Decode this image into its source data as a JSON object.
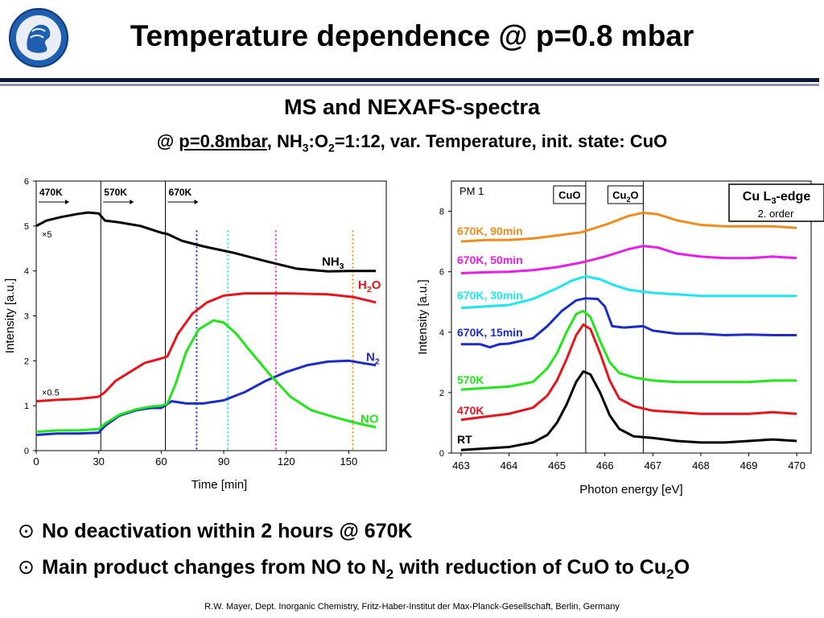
{
  "header": {
    "title": "Temperature dependence @ p=0.8 mbar",
    "subtitle": "MS and NEXAFS-spectra",
    "subline": {
      "prefix": "@ ",
      "pressure": "p=0.8mbar",
      "ratio_pre": ", NH",
      "sub1": "3",
      "ratio_mid": ":O",
      "sub2": "2",
      "ratio_post": "=1:12, var. Temperature, init. state: CuO"
    }
  },
  "colors": {
    "nh3": "#000000",
    "h2o": "#e8141c",
    "n2": "#1c2cc8",
    "no": "#22e61a",
    "cyan": "#1ee6f0",
    "magenta": "#e61ee6",
    "orange": "#f08c1e",
    "header_rule": "#0b1a3a"
  },
  "chart_data": [
    {
      "type": "line",
      "xlabel": "Time [min]",
      "ylabel": "Intensity [a.u.]",
      "xlim": [
        0,
        168
      ],
      "ylim": [
        0,
        6
      ],
      "xticks": [
        "0",
        "30",
        "60",
        "90",
        "120",
        "150"
      ],
      "yticks": [
        "0",
        "1",
        "2",
        "3",
        "4",
        "5",
        "6"
      ],
      "segments": [
        {
          "label": "470K",
          "start": 0
        },
        {
          "label": "570K",
          "start": 31
        },
        {
          "label": "670K",
          "start": 62
        }
      ],
      "scale_notes": [
        "×5",
        "×0.5"
      ],
      "marker_times": [
        77,
        92,
        115,
        152
      ],
      "series": [
        {
          "name": "NH3",
          "label_main": "NH",
          "label_sub": "3",
          "color": "#000000",
          "points": [
            [
              0,
              5.0
            ],
            [
              5,
              5.12
            ],
            [
              12,
              5.2
            ],
            [
              20,
              5.27
            ],
            [
              25,
              5.3
            ],
            [
              30,
              5.28
            ],
            [
              33,
              5.12
            ],
            [
              40,
              5.08
            ],
            [
              50,
              5.0
            ],
            [
              60,
              4.85
            ],
            [
              63,
              4.82
            ],
            [
              70,
              4.67
            ],
            [
              80,
              4.55
            ],
            [
              95,
              4.4
            ],
            [
              110,
              4.22
            ],
            [
              125,
              4.05
            ],
            [
              140,
              3.99
            ],
            [
              150,
              4.0
            ],
            [
              163,
              4.0
            ]
          ]
        },
        {
          "name": "H2O",
          "label_main": "H",
          "label_sub": "2",
          "label_tail": "O",
          "color": "#e8141c",
          "points": [
            [
              0,
              1.1
            ],
            [
              10,
              1.13
            ],
            [
              20,
              1.15
            ],
            [
              30,
              1.2
            ],
            [
              33,
              1.3
            ],
            [
              38,
              1.55
            ],
            [
              45,
              1.75
            ],
            [
              52,
              1.95
            ],
            [
              60,
              2.05
            ],
            [
              63,
              2.1
            ],
            [
              68,
              2.6
            ],
            [
              75,
              3.05
            ],
            [
              82,
              3.3
            ],
            [
              90,
              3.45
            ],
            [
              100,
              3.5
            ],
            [
              120,
              3.5
            ],
            [
              140,
              3.48
            ],
            [
              152,
              3.42
            ],
            [
              163,
              3.3
            ]
          ]
        },
        {
          "name": "N2",
          "label_main": "N",
          "label_sub": "2",
          "color": "#1c2cc8",
          "points": [
            [
              0,
              0.35
            ],
            [
              10,
              0.38
            ],
            [
              20,
              0.38
            ],
            [
              30,
              0.4
            ],
            [
              33,
              0.55
            ],
            [
              40,
              0.78
            ],
            [
              48,
              0.9
            ],
            [
              55,
              0.95
            ],
            [
              60,
              0.95
            ],
            [
              65,
              1.1
            ],
            [
              72,
              1.05
            ],
            [
              80,
              1.05
            ],
            [
              90,
              1.12
            ],
            [
              100,
              1.3
            ],
            [
              110,
              1.55
            ],
            [
              120,
              1.75
            ],
            [
              130,
              1.9
            ],
            [
              140,
              1.98
            ],
            [
              150,
              2.0
            ],
            [
              163,
              1.9
            ]
          ]
        },
        {
          "name": "NO",
          "label_main": "NO",
          "label_sub": "",
          "color": "#22e61a",
          "points": [
            [
              0,
              0.42
            ],
            [
              10,
              0.45
            ],
            [
              20,
              0.45
            ],
            [
              30,
              0.48
            ],
            [
              33,
              0.6
            ],
            [
              40,
              0.8
            ],
            [
              48,
              0.92
            ],
            [
              55,
              0.98
            ],
            [
              60,
              1.0
            ],
            [
              63,
              1.05
            ],
            [
              67,
              1.5
            ],
            [
              72,
              2.2
            ],
            [
              78,
              2.7
            ],
            [
              85,
              2.9
            ],
            [
              90,
              2.85
            ],
            [
              96,
              2.6
            ],
            [
              103,
              2.2
            ],
            [
              112,
              1.7
            ],
            [
              122,
              1.2
            ],
            [
              132,
              0.9
            ],
            [
              145,
              0.72
            ],
            [
              155,
              0.6
            ],
            [
              163,
              0.52
            ]
          ]
        }
      ]
    },
    {
      "type": "line",
      "xlabel": "Photon energy [eV]",
      "ylabel": "Intensity [a.u.]",
      "xlim": [
        462.8,
        470.3
      ],
      "ylim": [
        0,
        9
      ],
      "xticks": [
        "463",
        "464",
        "465",
        "466",
        "467",
        "468",
        "469",
        "470"
      ],
      "yticks": [
        "0",
        "2",
        "4",
        "6",
        "8"
      ],
      "corner_text": "PM 1",
      "reference_lines": [
        {
          "x": 465.6,
          "label": "CuO",
          "label_main": "CuO",
          "label_sub": "",
          "label_tail": ""
        },
        {
          "x": 466.8,
          "label": "Cu2O",
          "label_main": "Cu",
          "label_sub": "2",
          "label_tail": "O"
        }
      ],
      "edge_box": {
        "line1_main": "Cu L",
        "line1_sub": "3",
        "line1_tail": "-edge",
        "line2": "2. order"
      },
      "series": [
        {
          "name": "RT",
          "color": "#000000",
          "points": [
            [
              463,
              0.1
            ],
            [
              463.5,
              0.15
            ],
            [
              464,
              0.2
            ],
            [
              464.5,
              0.35
            ],
            [
              464.8,
              0.6
            ],
            [
              465,
              1.0
            ],
            [
              465.2,
              1.6
            ],
            [
              465.4,
              2.35
            ],
            [
              465.55,
              2.7
            ],
            [
              465.7,
              2.6
            ],
            [
              465.9,
              2.0
            ],
            [
              466.1,
              1.25
            ],
            [
              466.3,
              0.8
            ],
            [
              466.6,
              0.55
            ],
            [
              467,
              0.5
            ],
            [
              467.5,
              0.4
            ],
            [
              468,
              0.35
            ],
            [
              468.5,
              0.35
            ],
            [
              469,
              0.4
            ],
            [
              469.5,
              0.45
            ],
            [
              470,
              0.4
            ]
          ]
        },
        {
          "name": "470K",
          "color": "#e8141c",
          "points": [
            [
              463,
              1.1
            ],
            [
              463.5,
              1.2
            ],
            [
              464,
              1.3
            ],
            [
              464.5,
              1.5
            ],
            [
              464.8,
              1.9
            ],
            [
              465,
              2.4
            ],
            [
              465.2,
              3.1
            ],
            [
              465.4,
              3.9
            ],
            [
              465.55,
              4.25
            ],
            [
              465.7,
              4.1
            ],
            [
              465.9,
              3.3
            ],
            [
              466.1,
              2.4
            ],
            [
              466.3,
              1.8
            ],
            [
              466.6,
              1.55
            ],
            [
              467,
              1.4
            ],
            [
              467.5,
              1.35
            ],
            [
              468,
              1.3
            ],
            [
              468.5,
              1.3
            ],
            [
              469,
              1.3
            ],
            [
              469.5,
              1.35
            ],
            [
              470,
              1.3
            ]
          ]
        },
        {
          "name": "570K",
          "color": "#22e61a",
          "points": [
            [
              463,
              2.1
            ],
            [
              463.5,
              2.15
            ],
            [
              464,
              2.2
            ],
            [
              464.5,
              2.35
            ],
            [
              464.8,
              2.8
            ],
            [
              465,
              3.3
            ],
            [
              465.2,
              4.0
            ],
            [
              465.4,
              4.6
            ],
            [
              465.55,
              4.7
            ],
            [
              465.7,
              4.5
            ],
            [
              465.9,
              3.7
            ],
            [
              466.1,
              3.0
            ],
            [
              466.3,
              2.65
            ],
            [
              466.6,
              2.5
            ],
            [
              467,
              2.4
            ],
            [
              467.5,
              2.35
            ],
            [
              468,
              2.35
            ],
            [
              468.5,
              2.35
            ],
            [
              469,
              2.35
            ],
            [
              469.5,
              2.4
            ],
            [
              470,
              2.4
            ]
          ]
        },
        {
          "name": "670K, 15min",
          "color": "#1c2cc8",
          "points": [
            [
              463,
              3.6
            ],
            [
              463.4,
              3.6
            ],
            [
              463.6,
              3.5
            ],
            [
              463.8,
              3.6
            ],
            [
              464,
              3.62
            ],
            [
              464.5,
              3.8
            ],
            [
              464.8,
              4.2
            ],
            [
              465.1,
              4.7
            ],
            [
              465.4,
              5.05
            ],
            [
              465.6,
              5.12
            ],
            [
              465.85,
              5.1
            ],
            [
              466,
              4.85
            ],
            [
              466.15,
              4.2
            ],
            [
              466.4,
              4.15
            ],
            [
              466.8,
              4.2
            ],
            [
              467,
              4.05
            ],
            [
              467.5,
              3.95
            ],
            [
              468,
              3.95
            ],
            [
              468.5,
              3.9
            ],
            [
              469,
              3.92
            ],
            [
              469.5,
              3.9
            ],
            [
              470,
              3.9
            ]
          ]
        },
        {
          "name": "670K, 30min",
          "color": "#1ee6f0",
          "points": [
            [
              463,
              4.8
            ],
            [
              463.5,
              4.85
            ],
            [
              464,
              4.9
            ],
            [
              464.5,
              5.1
            ],
            [
              465,
              5.45
            ],
            [
              465.3,
              5.7
            ],
            [
              465.6,
              5.85
            ],
            [
              465.9,
              5.75
            ],
            [
              466.2,
              5.55
            ],
            [
              466.5,
              5.4
            ],
            [
              467,
              5.3
            ],
            [
              467.5,
              5.25
            ],
            [
              468,
              5.2
            ],
            [
              468.5,
              5.2
            ],
            [
              469,
              5.2
            ],
            [
              469.5,
              5.2
            ],
            [
              470,
              5.2
            ]
          ]
        },
        {
          "name": "670K, 50min",
          "color": "#e61ee6",
          "points": [
            [
              463,
              5.95
            ],
            [
              463.5,
              5.98
            ],
            [
              464,
              6.0
            ],
            [
              464.5,
              6.05
            ],
            [
              465,
              6.15
            ],
            [
              465.5,
              6.3
            ],
            [
              466,
              6.5
            ],
            [
              466.5,
              6.75
            ],
            [
              466.8,
              6.85
            ],
            [
              467.1,
              6.8
            ],
            [
              467.5,
              6.6
            ],
            [
              468,
              6.5
            ],
            [
              468.5,
              6.45
            ],
            [
              469,
              6.45
            ],
            [
              469.5,
              6.5
            ],
            [
              470,
              6.45
            ]
          ]
        },
        {
          "name": "670K, 90min",
          "color": "#f08c1e",
          "points": [
            [
              463,
              7.0
            ],
            [
              463.5,
              7.05
            ],
            [
              464,
              7.05
            ],
            [
              464.5,
              7.1
            ],
            [
              465,
              7.2
            ],
            [
              465.5,
              7.3
            ],
            [
              466,
              7.55
            ],
            [
              466.5,
              7.85
            ],
            [
              466.8,
              7.95
            ],
            [
              467.1,
              7.9
            ],
            [
              467.5,
              7.7
            ],
            [
              468,
              7.55
            ],
            [
              468.5,
              7.5
            ],
            [
              469,
              7.5
            ],
            [
              469.5,
              7.5
            ],
            [
              470,
              7.45
            ]
          ]
        }
      ]
    }
  ],
  "bullets": [
    {
      "mark": "⊙",
      "text": "No deactivation within 2 hours @ 670K"
    },
    {
      "mark": "⊙",
      "pre": "Main product changes from NO to N",
      "sub1": "2",
      "mid": " with reduction of CuO to Cu",
      "sub2": "2",
      "post": "O"
    }
  ],
  "footer": "R.W. Mayer, Dept. Inorganic Chemistry, Fritz-Haber-Institut der Max-Planck-Gesellschaft, Berlin, Germany"
}
